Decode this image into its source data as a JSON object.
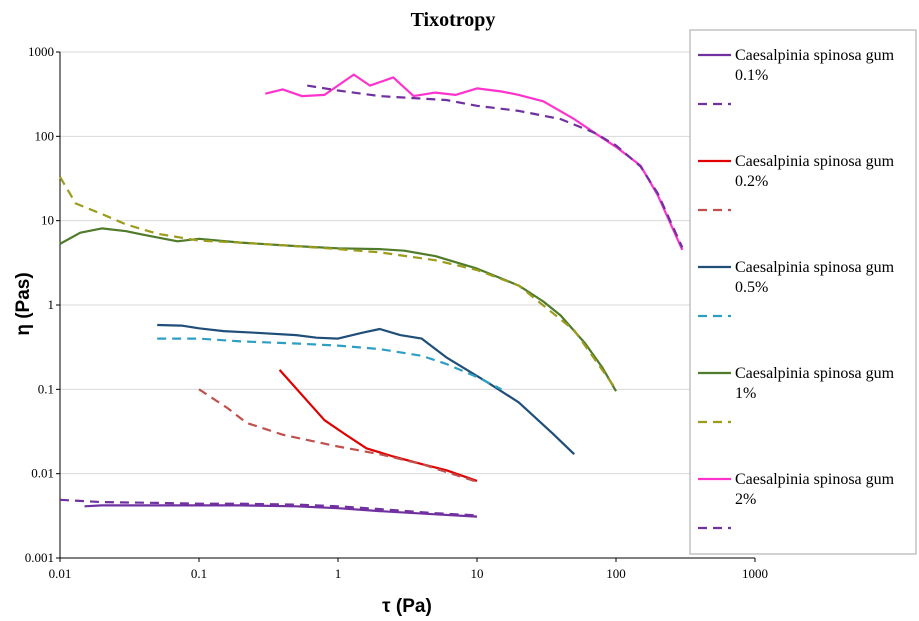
{
  "chart_data": {
    "type": "line",
    "title": "Tixotropy",
    "xlabel": "τ (Pa)",
    "ylabel": "η (Pas)",
    "xscale": "log",
    "yscale": "log",
    "xlim": [
      0.01,
      1000
    ],
    "ylim": [
      0.001,
      1000
    ],
    "x_ticks": [
      "0.01",
      "0.1",
      "1",
      "10",
      "100",
      "1000"
    ],
    "y_ticks": [
      "0.001",
      "0.01",
      "0.1",
      "1",
      "10",
      "100",
      "1000"
    ],
    "grid": "horizontal",
    "legend_position": "right",
    "series": [
      {
        "name": "Caesalpinia spinosa gum 0.1%",
        "color": "#7030A0",
        "style": "solid",
        "points": [
          [
            0.015,
            0.0041
          ],
          [
            0.02,
            0.0042
          ],
          [
            0.05,
            0.0042
          ],
          [
            0.1,
            0.0042
          ],
          [
            0.2,
            0.0042
          ],
          [
            0.5,
            0.0041
          ],
          [
            1,
            0.0039
          ],
          [
            2,
            0.0036
          ],
          [
            5,
            0.0033
          ],
          [
            10,
            0.0031
          ]
        ]
      },
      {
        "name": "",
        "color": "#7030A0",
        "style": "dashed",
        "points": [
          [
            0.01,
            0.0049
          ],
          [
            0.02,
            0.0046
          ],
          [
            0.05,
            0.0045
          ],
          [
            0.1,
            0.0044
          ],
          [
            0.2,
            0.0044
          ],
          [
            0.5,
            0.0043
          ],
          [
            1,
            0.0041
          ],
          [
            2,
            0.0038
          ],
          [
            5,
            0.0034
          ],
          [
            10,
            0.0032
          ]
        ]
      },
      {
        "name": "Caesalpinia spinosa gum 0.2%",
        "color": "#E00000",
        "style": "solid",
        "points": [
          [
            0.38,
            0.17
          ],
          [
            0.8,
            0.043
          ],
          [
            1.1,
            0.03
          ],
          [
            1.6,
            0.02
          ],
          [
            2.5,
            0.016
          ],
          [
            4,
            0.013
          ],
          [
            6,
            0.011
          ],
          [
            10,
            0.0082
          ]
        ]
      },
      {
        "name": "",
        "color": "#C0504D",
        "style": "dashed",
        "points": [
          [
            0.1,
            0.1
          ],
          [
            0.16,
            0.06
          ],
          [
            0.22,
            0.04
          ],
          [
            0.4,
            0.029
          ],
          [
            1,
            0.021
          ],
          [
            2,
            0.017
          ],
          [
            4,
            0.013
          ],
          [
            10,
            0.008
          ]
        ]
      },
      {
        "name": "Caesalpinia spinosa gum 0.5%",
        "color": "#1F4E79",
        "style": "solid",
        "points": [
          [
            0.05,
            0.58
          ],
          [
            0.075,
            0.57
          ],
          [
            0.1,
            0.53
          ],
          [
            0.15,
            0.49
          ],
          [
            0.25,
            0.47
          ],
          [
            0.5,
            0.44
          ],
          [
            0.7,
            0.41
          ],
          [
            1,
            0.4
          ],
          [
            1.5,
            0.47
          ],
          [
            2,
            0.52
          ],
          [
            2.8,
            0.44
          ],
          [
            4,
            0.4
          ],
          [
            6,
            0.24
          ],
          [
            8,
            0.18
          ],
          [
            12,
            0.12
          ],
          [
            20,
            0.07
          ],
          [
            35,
            0.03
          ],
          [
            50,
            0.017
          ]
        ]
      },
      {
        "name": "",
        "color": "#2E9FC4",
        "style": "dashed",
        "points": [
          [
            0.05,
            0.4
          ],
          [
            0.1,
            0.4
          ],
          [
            0.2,
            0.37
          ],
          [
            0.5,
            0.35
          ],
          [
            1,
            0.33
          ],
          [
            2,
            0.3
          ],
          [
            4,
            0.25
          ],
          [
            6,
            0.2
          ],
          [
            10,
            0.14
          ],
          [
            15,
            0.1
          ]
        ]
      },
      {
        "name": "Caesalpinia spinosa gum 1%",
        "color": "#4F7B2B",
        "style": "solid",
        "points": [
          [
            0.01,
            5.3
          ],
          [
            0.014,
            7.2
          ],
          [
            0.02,
            8.1
          ],
          [
            0.03,
            7.5
          ],
          [
            0.04,
            6.8
          ],
          [
            0.07,
            5.7
          ],
          [
            0.1,
            6.1
          ],
          [
            0.2,
            5.5
          ],
          [
            0.5,
            5
          ],
          [
            1,
            4.7
          ],
          [
            2,
            4.6
          ],
          [
            3,
            4.4
          ],
          [
            5,
            3.8
          ],
          [
            10,
            2.7
          ],
          [
            20,
            1.7
          ],
          [
            30,
            1.1
          ],
          [
            40,
            0.75
          ],
          [
            60,
            0.35
          ],
          [
            80,
            0.18
          ],
          [
            100,
            0.095
          ]
        ]
      },
      {
        "name": "",
        "color": "#9C9C1C",
        "style": "dashed",
        "points": [
          [
            0.01,
            33
          ],
          [
            0.013,
            16
          ],
          [
            0.02,
            12
          ],
          [
            0.03,
            9
          ],
          [
            0.05,
            7
          ],
          [
            0.1,
            5.8
          ],
          [
            0.2,
            5.5
          ],
          [
            0.5,
            5
          ],
          [
            1,
            4.6
          ],
          [
            2,
            4.2
          ],
          [
            5,
            3.4
          ],
          [
            10,
            2.6
          ],
          [
            20,
            1.7
          ],
          [
            50,
            0.5
          ],
          [
            100,
            0.1
          ]
        ]
      },
      {
        "name": "Caesalpinia spinosa gum 2%",
        "color": "#FF33CC",
        "style": "solid",
        "points": [
          [
            0.3,
            320
          ],
          [
            0.4,
            360
          ],
          [
            0.55,
            300
          ],
          [
            0.8,
            310
          ],
          [
            1.3,
            540
          ],
          [
            1.7,
            400
          ],
          [
            2.5,
            500
          ],
          [
            3.5,
            300
          ],
          [
            5,
            330
          ],
          [
            7,
            310
          ],
          [
            10,
            370
          ],
          [
            15,
            340
          ],
          [
            20,
            310
          ],
          [
            30,
            260
          ],
          [
            50,
            160
          ],
          [
            70,
            110
          ],
          [
            100,
            75
          ],
          [
            150,
            45
          ],
          [
            200,
            20
          ],
          [
            300,
            4.5
          ]
        ]
      },
      {
        "name": "",
        "color": "#7030A0",
        "style": "dashed",
        "points": [
          [
            0.6,
            400
          ],
          [
            1,
            350
          ],
          [
            2,
            300
          ],
          [
            4,
            280
          ],
          [
            6,
            270
          ],
          [
            10,
            230
          ],
          [
            20,
            200
          ],
          [
            40,
            160
          ],
          [
            70,
            110
          ],
          [
            100,
            78
          ],
          [
            150,
            44
          ],
          [
            200,
            21
          ],
          [
            300,
            4.8
          ]
        ]
      }
    ]
  }
}
